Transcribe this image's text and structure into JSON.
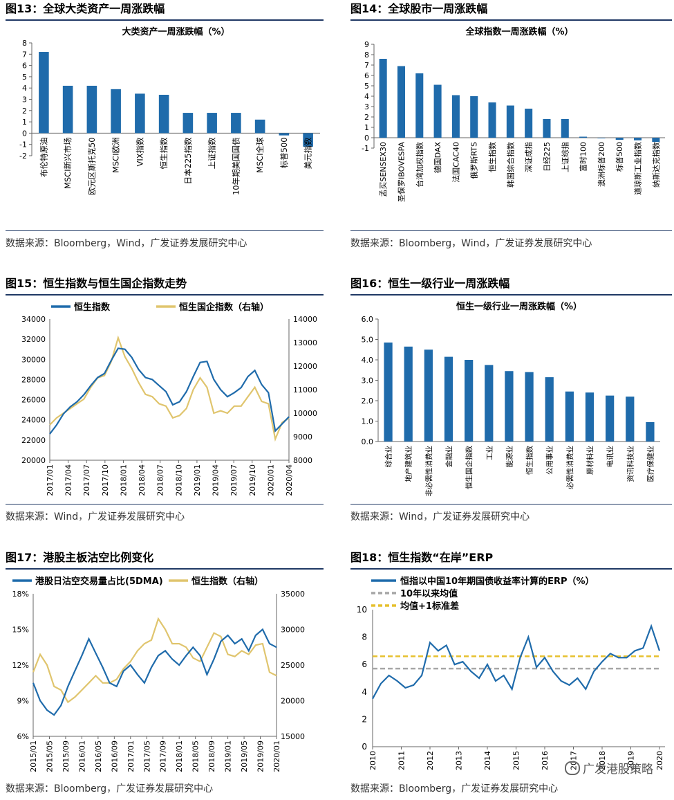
{
  "colors": {
    "blue": "#1f6bab",
    "gold": "#e0c56e",
    "grey": "#a6a6a6",
    "dashed_yellow": "#e6c02e",
    "title_rule": "#1f3864"
  },
  "source_prefix": "数据来源：",
  "panels": [
    {
      "title": "图13：全球大类资产一周涨跌幅",
      "source": "Bloomberg，Wind，广发证券发展研究中心"
    },
    {
      "title": "图14：全球股市一周涨跌幅",
      "source": "Bloomberg，Wind，广发证券发展研究中心"
    },
    {
      "title": "图15：恒生指数与恒生国企指数走势",
      "source": "Wind，广发证券发展研究中心"
    },
    {
      "title": "图16：恒生一级行业一周涨跌幅",
      "source": "Wind，广发证券发展研究中心"
    },
    {
      "title": "图17：港股主板沽空比例变化",
      "source": "Bloomberg，广发证券发展研究中心"
    },
    {
      "title": "图18：恒生指数“在岸”ERP",
      "source": "Bloomberg，广发证券发展研究中心"
    }
  ],
  "watermark": "广发港股策略",
  "chart_data": [
    {
      "type": "bar",
      "title": "大类资产一周涨跌幅（%）",
      "categories": [
        "布伦特原油",
        "MSCI新兴市场",
        "欧元区斯托克50",
        "MSCI欧洲",
        "VIX指数",
        "恒生指数",
        "日本225指数",
        "上证指数",
        "10年期美国国债",
        "MSCI全球",
        "标普500",
        "美元指数"
      ],
      "values": [
        7.2,
        4.2,
        4.2,
        3.9,
        3.5,
        3.4,
        1.8,
        1.8,
        1.8,
        1.2,
        -0.2,
        -1.2
      ],
      "ylim": [
        -2,
        8
      ],
      "yticks": [
        -2,
        -1,
        0,
        1,
        2,
        3,
        4,
        5,
        6,
        7,
        8
      ],
      "grid": false
    },
    {
      "type": "bar",
      "title": "全球指数一周涨跌幅（%）",
      "categories": [
        "孟买SENSEX30",
        "圣保罗IBOVESPA",
        "台湾加权指数",
        "德国DAX",
        "法国CAC40",
        "俄罗斯RTS",
        "恒生指数",
        "韩国综合指数",
        "深证成指",
        "日经225",
        "上证综指",
        "富时100",
        "澳洲标普200",
        "标普500",
        "道琼斯工业指数",
        "纳斯达克指数"
      ],
      "values": [
        7.6,
        6.9,
        6.2,
        5.1,
        4.1,
        4.0,
        3.4,
        3.1,
        2.8,
        1.8,
        1.8,
        0.1,
        0.0,
        -0.2,
        -0.25,
        -0.4
      ],
      "ylim": [
        -1,
        9
      ],
      "yticks": [
        -1,
        0,
        1,
        2,
        3,
        4,
        5,
        6,
        7,
        8,
        9
      ],
      "grid": false
    },
    {
      "type": "line",
      "title": "",
      "series": [
        {
          "name": "恒生指数",
          "axis": "left",
          "values": [
            22600,
            23500,
            24600,
            25300,
            25800,
            26500,
            27400,
            28200,
            28600,
            29900,
            31100,
            31000,
            30200,
            29000,
            28200,
            28000,
            27400,
            26800,
            25500,
            25800,
            26800,
            28300,
            29700,
            29800,
            28000,
            27000,
            26300,
            26700,
            27200,
            28300,
            28900,
            27500,
            26700,
            22900,
            23600,
            24300
          ]
        },
        {
          "name": "恒生国企指数（右轴）",
          "axis": "right",
          "values": [
            9500,
            9800,
            10000,
            10200,
            10400,
            10600,
            11100,
            11500,
            11600,
            12200,
            13200,
            12400,
            11900,
            11300,
            10800,
            10700,
            10400,
            10300,
            9800,
            9900,
            10200,
            11000,
            11500,
            11100,
            10000,
            10100,
            10000,
            10300,
            10300,
            10700,
            11100,
            10500,
            10400,
            8900,
            9600,
            9800
          ]
        }
      ],
      "x_ticks": [
        "2017/01",
        "2017/04",
        "2017/07",
        "2017/10",
        "2018/01",
        "2018/04",
        "2018/07",
        "2018/10",
        "2019/01",
        "2019/04",
        "2019/07",
        "2019/10",
        "2020/01",
        "2020/04"
      ],
      "ylim_left": [
        20000,
        34000
      ],
      "yticks_left": [
        20000,
        22000,
        24000,
        26000,
        28000,
        30000,
        32000,
        34000
      ],
      "ylim_right": [
        8000,
        14000
      ],
      "yticks_right": [
        8000,
        9000,
        10000,
        11000,
        12000,
        13000,
        14000
      ],
      "legend_position": "top"
    },
    {
      "type": "bar",
      "title": "恒生一级行业一周涨跌幅（%）",
      "categories": [
        "综合业",
        "地产建筑业",
        "非必需性消费业",
        "金融业",
        "恒生国企指数",
        "工业",
        "能源业",
        "恒生指数",
        "公用事业",
        "必需性消费业",
        "原材料业",
        "电讯业",
        "资讯科技业",
        "医疗保健业"
      ],
      "values": [
        4.85,
        4.65,
        4.5,
        4.15,
        4.0,
        3.75,
        3.45,
        3.4,
        3.15,
        2.45,
        2.4,
        2.25,
        2.2,
        0.95
      ],
      "ylim": [
        0,
        6
      ],
      "yticks": [
        0.0,
        1.0,
        2.0,
        3.0,
        4.0,
        5.0,
        6.0
      ],
      "tick_format": "0.0",
      "grid": false
    },
    {
      "type": "line",
      "title": "",
      "series": [
        {
          "name": "港股日沽空交易量占比(5DMA)",
          "axis": "left",
          "values": [
            10.5,
            9.0,
            8.2,
            7.8,
            8.6,
            10.2,
            11.5,
            12.8,
            14.2,
            13.0,
            11.8,
            10.5,
            10.2,
            11.5,
            12.0,
            11.2,
            10.5,
            11.8,
            12.8,
            13.2,
            12.5,
            12.0,
            12.8,
            13.5,
            12.8,
            11.2,
            12.5,
            14.0,
            14.5,
            13.8,
            14.2,
            13.2,
            14.5,
            15.0,
            13.8,
            13.5
          ]
        },
        {
          "name": "恒生指数（右轴）",
          "axis": "right",
          "values": [
            24000,
            26500,
            25000,
            22000,
            21500,
            19800,
            20500,
            21500,
            22500,
            23500,
            22500,
            22500,
            23000,
            24500,
            25500,
            27000,
            28000,
            28500,
            31500,
            30000,
            28000,
            28000,
            27500,
            26000,
            25500,
            27500,
            29500,
            29000,
            26500,
            26200,
            27000,
            26500,
            27800,
            28000,
            24000,
            23500
          ]
        }
      ],
      "x_ticks": [
        "2015/01",
        "2015/05",
        "2015/09",
        "2016/01",
        "2016/05",
        "2016/09",
        "2017/01",
        "2017/05",
        "2017/09",
        "2018/01",
        "2018/05",
        "2018/09",
        "2019/01",
        "2019/05",
        "2019/09",
        "2020/01"
      ],
      "ylim_left": [
        6,
        18
      ],
      "yticks_left": [
        "6%",
        "9%",
        "12%",
        "15%",
        "18%"
      ],
      "ylim_right": [
        15000,
        35000
      ],
      "yticks_right": [
        15000,
        20000,
        25000,
        30000,
        35000
      ],
      "legend_position": "top"
    },
    {
      "type": "line",
      "title": "",
      "series": [
        {
          "name": "恒指以中国10年期国债收益率计算的ERP（%）",
          "values": [
            3.5,
            4.6,
            5.2,
            4.8,
            4.3,
            4.5,
            5.2,
            7.6,
            7.0,
            7.4,
            6.0,
            6.2,
            5.5,
            5.0,
            6.0,
            4.8,
            5.2,
            4.2,
            6.5,
            8.0,
            5.8,
            6.5,
            5.5,
            4.8,
            4.5,
            5.0,
            4.2,
            5.5,
            6.2,
            6.8,
            6.5,
            6.5,
            7.0,
            7.2,
            8.8,
            7.0
          ]
        },
        {
          "name": "10年以来均值",
          "values": [
            5.7
          ]
        },
        {
          "name": "均值+1标准差",
          "values": [
            6.6
          ]
        }
      ],
      "x_ticks": [
        "2010",
        "2011",
        "2012",
        "2013",
        "2014",
        "2015",
        "2016",
        "2017",
        "2018",
        "2019",
        "2020"
      ],
      "ylim": [
        0,
        10
      ],
      "yticks": [
        0,
        2,
        4,
        6,
        8,
        10
      ],
      "legend_position": "top-left"
    }
  ]
}
